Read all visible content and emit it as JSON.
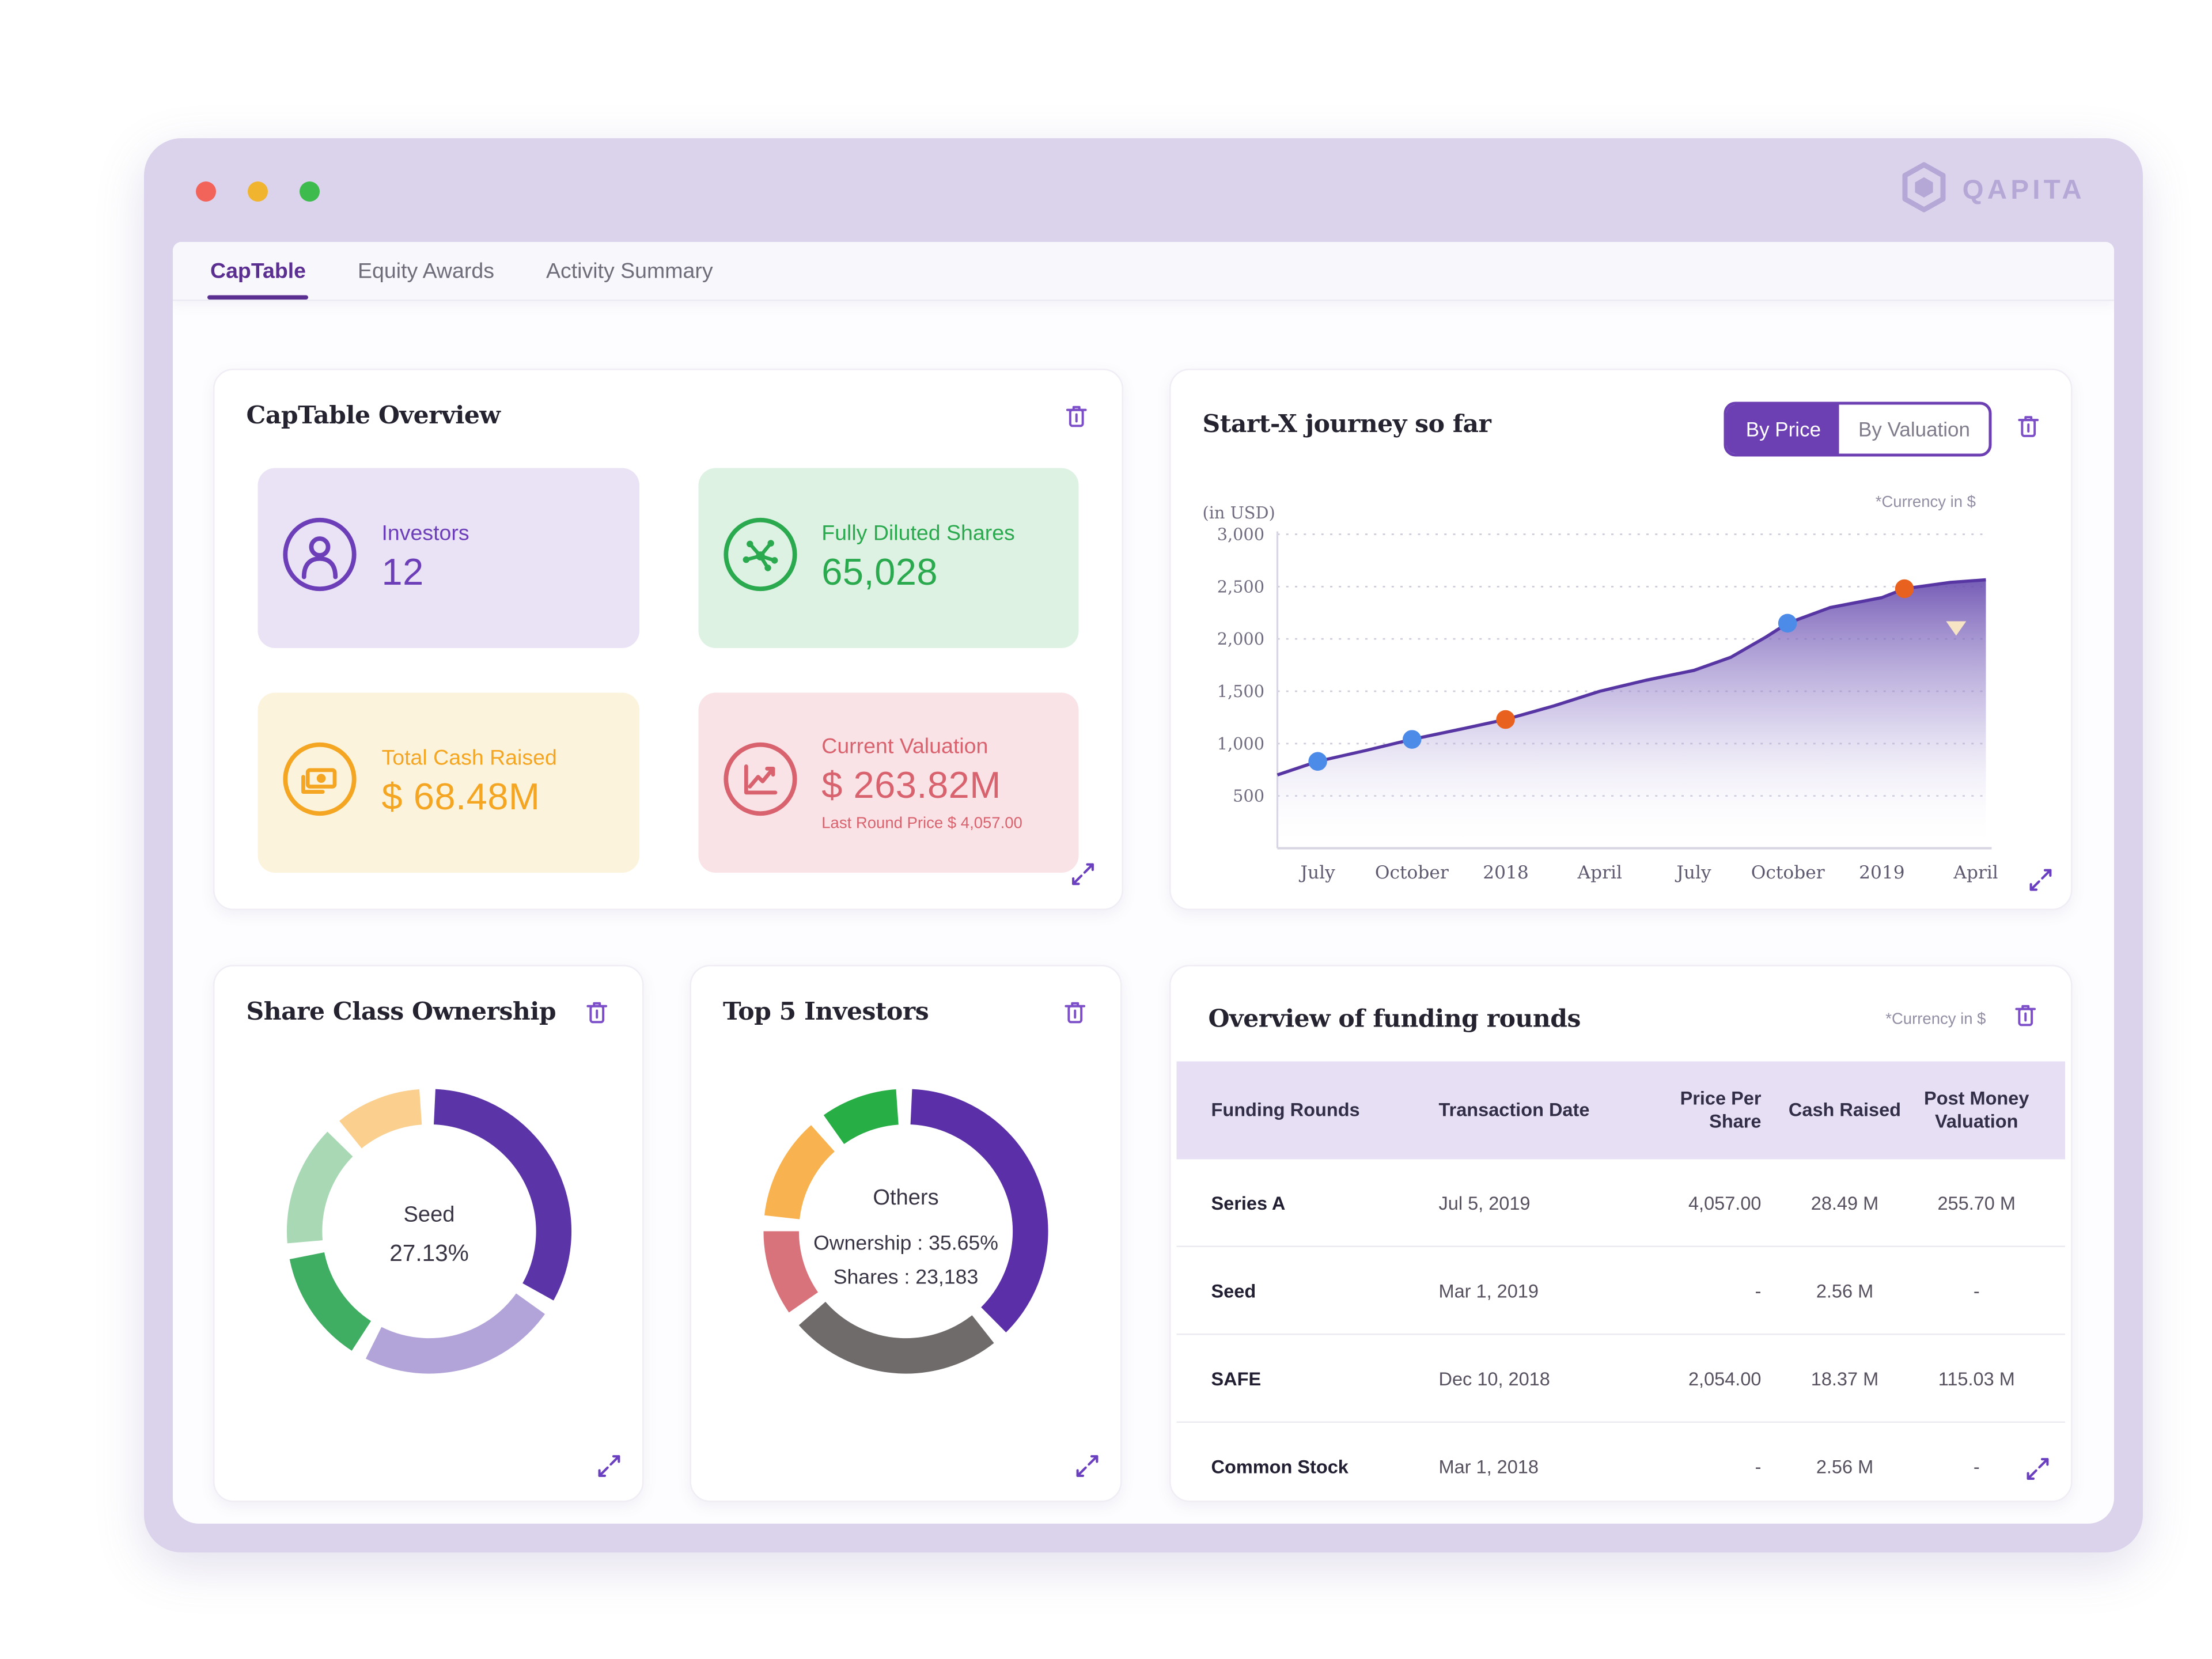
{
  "window": {
    "brand": "QAPITA",
    "traffic_lights": [
      "#F2635A",
      "#F0B42E",
      "#3DBB4C"
    ]
  },
  "tabs": [
    {
      "label": "CapTable",
      "active": true
    },
    {
      "label": "Equity Awards",
      "active": false
    },
    {
      "label": "Activity Summary",
      "active": false
    }
  ],
  "overview_card": {
    "title": "CapTable Overview",
    "tiles": [
      {
        "icon": "user-icon",
        "label": "Investors",
        "value": "12",
        "bg": "#EAE3F6",
        "accent": "#6C3EB8"
      },
      {
        "icon": "network-icon",
        "label": "Fully Diluted Shares",
        "value": "65,028",
        "bg": "#DDF2E2",
        "accent": "#2BA94F"
      },
      {
        "icon": "cash-icon",
        "label": "Total Cash Raised",
        "value": "$ 68.48M",
        "bg": "#FCF3DC",
        "accent": "#F4A623"
      },
      {
        "icon": "chart-icon",
        "label": "Current Valuation",
        "value": "$ 263.82M",
        "subtext": "Last Round Price $ 4,057.00",
        "bg": "#FAE3E6",
        "accent": "#D8636E"
      }
    ]
  },
  "journey_card": {
    "title": "Start-X journey so far",
    "toggle": {
      "options": [
        "By Price",
        "By Valuation"
      ],
      "selected": "By Price"
    },
    "currency_note": "*Currency in $",
    "axis_unit": "(in USD)"
  },
  "share_class_card": {
    "title": "Share Class Ownership",
    "center_label": "Seed",
    "center_value": "27.13%"
  },
  "top_investors_card": {
    "title": "Top 5 Investors",
    "center_label": "Others",
    "ownership_line": "Ownership : 35.65%",
    "shares_line": "Shares : 23,183"
  },
  "funding_card": {
    "title": "Overview of funding rounds",
    "currency_note": "*Currency in $",
    "columns": [
      "Funding Rounds",
      "Transaction Date",
      "Price Per Share",
      "Cash Raised",
      "Post Money Valuation"
    ],
    "rows": [
      [
        "Series A",
        "Jul 5, 2019",
        "4,057.00",
        "28.49 M",
        "255.70 M"
      ],
      [
        "Seed",
        "Mar 1, 2019",
        "-",
        "2.56 M",
        "-"
      ],
      [
        "SAFE",
        "Dec 10, 2018",
        "2,054.00",
        "18.37 M",
        "115.03 M"
      ],
      [
        "Common Stock",
        "Mar 1, 2018",
        "-",
        "2.56 M",
        "-"
      ]
    ]
  },
  "colors": {
    "brand_purple": "#5B2E91",
    "toggle_purple": "#6C3FB3",
    "window_lavender": "#DBD3EC",
    "table_header_bg": "#E7E0F4",
    "trash_icon": "#7C4FC9"
  },
  "chart_data": [
    {
      "name": "journey",
      "type": "area",
      "title": "Start-X journey so far",
      "ylabel": "(in USD)",
      "ylim": [
        0,
        3000
      ],
      "grid": "dotted-horizontal",
      "y_ticks": [
        {
          "v": 500,
          "label": "500"
        },
        {
          "v": 1000,
          "label": "1,000"
        },
        {
          "v": 1500,
          "label": "1,500"
        },
        {
          "v": 2000,
          "label": "2,000"
        },
        {
          "v": 2500,
          "label": "2,500"
        },
        {
          "v": 3000,
          "label": "3,000"
        }
      ],
      "x_labels": [
        "July",
        "October",
        "2018",
        "April",
        "July",
        "October",
        "2019",
        "April"
      ],
      "x_label_start": 0.057,
      "x_label_step": 0.1327,
      "line_color": "#5736A3",
      "fill_gradient": [
        "#6A4FB0",
        "#A08FD0",
        "#FFFFFF"
      ],
      "points": [
        [
          0,
          700
        ],
        [
          0.057,
          830
        ],
        [
          0.125,
          935
        ],
        [
          0.19,
          1040
        ],
        [
          0.26,
          1140
        ],
        [
          0.322,
          1230
        ],
        [
          0.39,
          1360
        ],
        [
          0.455,
          1500
        ],
        [
          0.52,
          1605
        ],
        [
          0.588,
          1700
        ],
        [
          0.64,
          1825
        ],
        [
          0.69,
          2020
        ],
        [
          0.72,
          2150
        ],
        [
          0.78,
          2300
        ],
        [
          0.853,
          2395
        ],
        [
          0.885,
          2480
        ],
        [
          0.95,
          2540
        ],
        [
          1,
          2565
        ]
      ],
      "markers": [
        {
          "f": 0.057,
          "v": 830,
          "color": "#4D8BE8"
        },
        {
          "f": 0.19,
          "v": 1040,
          "color": "#4D8BE8"
        },
        {
          "f": 0.322,
          "v": 1230,
          "color": "#E8611F"
        },
        {
          "f": 0.72,
          "v": 2150,
          "color": "#4D8BE8"
        },
        {
          "f": 0.885,
          "v": 2480,
          "color": "#E8611F"
        }
      ],
      "flag_marker": {
        "f": 0.958,
        "v": 2100,
        "color": "#F6E4C4"
      }
    },
    {
      "name": "share_class",
      "type": "donut",
      "center": [
        {
          "t": "Seed",
          "y": 113,
          "size": 15.5
        },
        {
          "t": "27.13%",
          "y": 141,
          "size": 16.5
        }
      ],
      "segments": [
        {
          "color": "#5B34A8",
          "value": 33
        },
        {
          "color": "#B2A4D9",
          "value": 23
        },
        {
          "color": "#3FAE62",
          "value": 13
        },
        {
          "color": "#A9D8B4",
          "value": 14
        },
        {
          "color": "#FBCF8E",
          "value": 10
        }
      ]
    },
    {
      "name": "top_investors",
      "type": "donut",
      "center": [
        {
          "t": "Others",
          "y": 101,
          "size": 15.5
        },
        {
          "t": "Ownership : 35.65%",
          "y": 133,
          "size": 14.5
        },
        {
          "t": "Shares : 23,183",
          "y": 157,
          "size": 14.5
        }
      ],
      "segments": [
        {
          "color": "#5B2FA8",
          "value": 38
        },
        {
          "color": "#6F6B6B",
          "value": 25
        },
        {
          "color": "#D9737B",
          "value": 10
        },
        {
          "color": "#F8B350",
          "value": 12
        },
        {
          "color": "#27AE45",
          "value": 9
        }
      ]
    }
  ]
}
